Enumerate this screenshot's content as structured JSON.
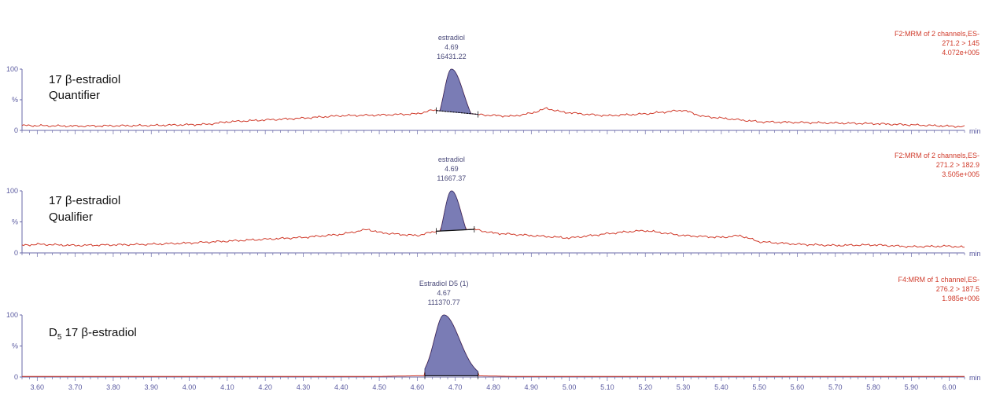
{
  "chart_data": {
    "type": "line",
    "x_unit": "min",
    "xlim": [
      3.56,
      6.04
    ],
    "x_ticks": [
      3.6,
      3.7,
      3.8,
      3.9,
      4.0,
      4.1,
      4.2,
      4.3,
      4.4,
      4.5,
      4.6,
      4.7,
      4.8,
      4.9,
      5.0,
      5.1,
      5.2,
      5.3,
      5.4,
      5.5,
      5.6,
      5.7,
      5.8,
      5.9,
      6.0
    ],
    "x_tick_labels": [
      "3.60",
      "3.70",
      "3.80",
      "3.90",
      "4.00",
      "4.10",
      "4.20",
      "4.30",
      "4.40",
      "4.50",
      "4.60",
      "4.70",
      "4.80",
      "4.90",
      "5.00",
      "5.10",
      "5.20",
      "5.30",
      "5.40",
      "5.50",
      "5.60",
      "5.70",
      "5.80",
      "5.90",
      "6.00"
    ],
    "y_ticks": [
      "100",
      "%",
      "0"
    ],
    "panels": [
      {
        "label_line1": "17 β-estradiol",
        "label_line2": "Quantifier",
        "info": [
          "F2:MRM of 2 channels,ES-",
          "271.2 > 145",
          "4.072e+005"
        ],
        "peak_name": "estradiol",
        "peak_rt": "4.69",
        "peak_area": "16431.22",
        "peak_apex_x": 4.69,
        "peak_height": 100,
        "peak_start": 4.65,
        "peak_end": 4.76,
        "x": [
          3.56,
          3.7,
          3.9,
          4.05,
          4.1,
          4.2,
          4.3,
          4.4,
          4.5,
          4.6,
          4.64,
          4.78,
          4.85,
          4.9,
          4.94,
          4.98,
          5.05,
          5.1,
          5.2,
          5.25,
          5.3,
          5.35,
          5.4,
          5.5,
          5.6,
          5.8,
          5.95,
          6.04
        ],
        "y": [
          8,
          7,
          8,
          10,
          14,
          17,
          20,
          24,
          25,
          27,
          33,
          25,
          23,
          28,
          36,
          30,
          26,
          24,
          27,
          30,
          33,
          23,
          20,
          14,
          13,
          11,
          8,
          6
        ]
      },
      {
        "label_line1": "17 β-estradiol",
        "label_line2": "Qualifier",
        "info": [
          "F2:MRM of 2 channels,ES-",
          "271.2 > 182.9",
          "3.505e+005"
        ],
        "peak_name": "estradiol",
        "peak_rt": "4.69",
        "peak_area": "11667.37",
        "peak_apex_x": 4.69,
        "peak_height": 100,
        "peak_start": 4.65,
        "peak_end": 4.75,
        "x": [
          3.56,
          3.6,
          3.7,
          3.8,
          3.9,
          4.0,
          4.1,
          4.2,
          4.3,
          4.4,
          4.47,
          4.5,
          4.55,
          4.6,
          4.65,
          4.75,
          4.8,
          4.9,
          5.0,
          5.1,
          5.15,
          5.2,
          5.25,
          5.3,
          5.4,
          5.45,
          5.5,
          5.6,
          5.7,
          5.8,
          5.9,
          6.0,
          6.04
        ],
        "y": [
          12,
          14,
          12,
          13,
          14,
          16,
          19,
          22,
          25,
          30,
          38,
          33,
          30,
          28,
          35,
          38,
          32,
          28,
          24,
          31,
          34,
          36,
          32,
          28,
          25,
          28,
          18,
          14,
          12,
          13,
          10,
          11,
          9
        ]
      },
      {
        "label_line1": "D5 17 β-estradiol",
        "info": [
          "F4:MRM of 1 channel,ES-",
          "276.2 > 187.5",
          "1.985e+006"
        ],
        "peak_name": "Estradiol D5 (1)",
        "peak_rt": "4.67",
        "peak_area": "111370.77",
        "peak_apex_x": 4.67,
        "peak_height": 100,
        "peak_start": 4.62,
        "peak_end": 4.76,
        "x": [
          3.56,
          4.0,
          4.5,
          4.6,
          4.62,
          4.76,
          4.85,
          5.0,
          5.5,
          6.04
        ],
        "y": [
          1,
          1,
          1,
          2,
          2,
          2,
          1,
          1,
          1,
          1
        ]
      }
    ]
  },
  "colors": {
    "trace": "#d03a2a",
    "peak_fill": "#7a7cb5",
    "peak_edge": "#2f2f6a",
    "axis": "#6a6aa8",
    "info_text": "#d03a2a",
    "peak_text": "#4a4a7a"
  }
}
